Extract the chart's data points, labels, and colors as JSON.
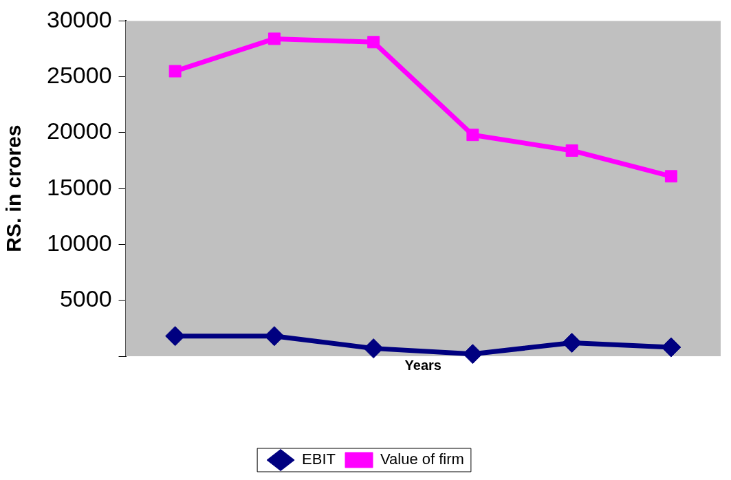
{
  "chart_data": {
    "type": "line",
    "xlabel": "Years",
    "ylabel": "RS. in crores",
    "categories": [
      null,
      null,
      null,
      null,
      null,
      null
    ],
    "series": [
      {
        "name": "EBIT",
        "color": "#000080",
        "marker": "diamond",
        "values": [
          1800,
          1800,
          700,
          200,
          1200,
          800
        ]
      },
      {
        "name": "Value of firm",
        "color": "#ff00ff",
        "marker": "square",
        "values": [
          25500,
          28400,
          28100,
          19800,
          18400,
          16100
        ]
      }
    ],
    "ylim": [
      0,
      30000
    ],
    "yticks": [
      {
        "value": 0,
        "label": null
      },
      5000,
      10000,
      15000,
      20000,
      25000,
      30000
    ],
    "tick_labels": "y",
    "grid": false,
    "legend": "bottom",
    "line_style": "solid"
  }
}
